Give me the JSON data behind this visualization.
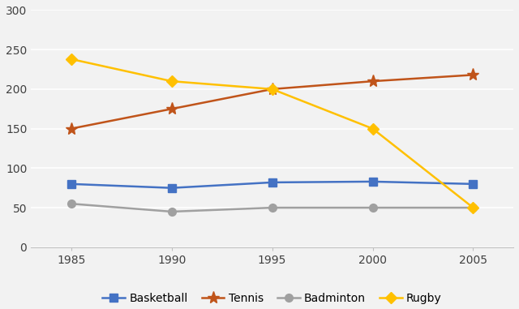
{
  "years": [
    1985,
    1990,
    1995,
    2000,
    2005
  ],
  "basketball": [
    80,
    75,
    82,
    83,
    80
  ],
  "tennis": [
    150,
    175,
    200,
    210,
    218
  ],
  "badminton": [
    55,
    45,
    50,
    50,
    50
  ],
  "rugby": [
    238,
    210,
    200,
    150,
    50
  ],
  "colors": {
    "basketball": "#4472C4",
    "tennis": "#C0541A",
    "badminton": "#A0A0A0",
    "rugby": "#FFC000"
  },
  "ylim": [
    0,
    300
  ],
  "yticks": [
    0,
    50,
    100,
    150,
    200,
    250,
    300
  ],
  "background_color": "#F2F2F2",
  "plot_bg_color": "#F2F2F2",
  "grid_color": "#FFFFFF",
  "title": "",
  "legend_labels": [
    "Basketball",
    "Tennis",
    "Badminton",
    "Rugby"
  ]
}
